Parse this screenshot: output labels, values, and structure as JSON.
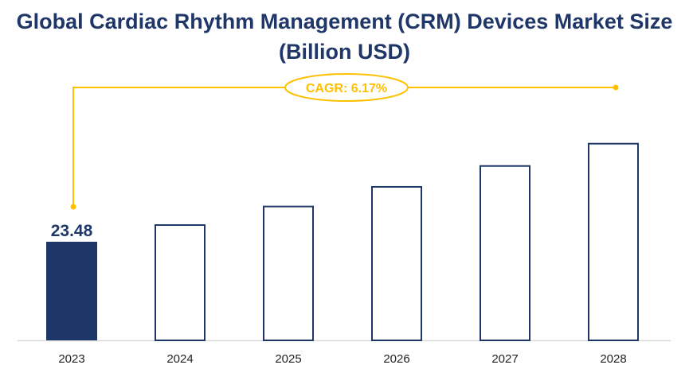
{
  "chart_data": {
    "type": "bar",
    "title": "Global Cardiac Rhythm Management (CRM) Devices Market Size (Billion USD)",
    "categories": [
      "2023",
      "2024",
      "2025",
      "2026",
      "2027",
      "2028"
    ],
    "values": [
      23.48,
      24.93,
      26.47,
      28.1,
      29.83,
      31.68
    ],
    "data_labels": [
      "23.48",
      "",
      "",
      "",
      "",
      ""
    ],
    "ylim": [
      15.3,
      32
    ],
    "xlabel": "",
    "ylabel": "",
    "grid": false,
    "annotation": "CAGR: 6.17%",
    "colors": {
      "bar_fill_first": "#1f3768",
      "bar_outline": "#1f3768",
      "annotation": "#ffc000",
      "axis": "#d9d9d9",
      "title": "#1f3768"
    }
  }
}
